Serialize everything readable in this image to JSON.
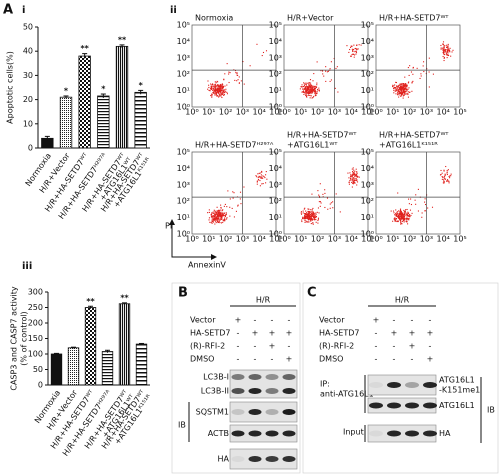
{
  "figure_label": "A",
  "chart_data": [
    {
      "type": "bar",
      "label": "i",
      "y_label": [
        "Apoptotic cells(%)"
      ],
      "categories": [
        [
          "Normoxia"
        ],
        [
          "H/R+Vector"
        ],
        [
          "H/R+HA-SETD7ᵂᵀ"
        ],
        [
          "H/R+HA-SETD7ᴴ²⁹⁷ᴬ"
        ],
        [
          "H/R+HA-SETD7ᵂᵀ",
          "+ATG16L1ᵂᵀ"
        ],
        [
          "H/R+HA-SETD7ᵂᵀ",
          "+ATG16L1ᴷ¹⁵¹ᴿ"
        ]
      ],
      "values": [
        4,
        21,
        38,
        21.5,
        42,
        23
      ],
      "errors": [
        0.8,
        0.5,
        1,
        0.8,
        0.6,
        0.8
      ],
      "significance": [
        null,
        "*",
        "**",
        "*",
        "**",
        "*"
      ],
      "ylim": [
        0,
        50
      ],
      "yticks": [
        0,
        10,
        20,
        30,
        40,
        50
      ]
    },
    {
      "type": "bar",
      "label": "iii",
      "y_label": [
        "CASP3 and CASP7 activity",
        "(% of control)"
      ],
      "categories": [
        [
          "Normoxia"
        ],
        [
          "H/R+Vector"
        ],
        [
          "H/R+HA-SETD7ᵂᵀ"
        ],
        [
          "H/R+HA-SETD7ᴴ²⁹⁷ᴬ"
        ],
        [
          "H/R+HA-SETD7ᵂᵀ",
          "+ATG16L1ᵂᵀ"
        ],
        [
          "H/R+HA-SETD7ᵂᵀ",
          "+ATG16L1ᴷ¹⁵¹ᴿ"
        ]
      ],
      "values": [
        100,
        120,
        250,
        108,
        262,
        132
      ],
      "errors": [
        2,
        2,
        4,
        4,
        3,
        2
      ],
      "significance": [
        null,
        null,
        "**",
        null,
        "**",
        null
      ],
      "ylim": [
        0,
        300
      ],
      "yticks": [
        0,
        50,
        100,
        150,
        200,
        250,
        300
      ]
    }
  ],
  "flow_panel": {
    "label": "ii",
    "y_axis_label": "PI",
    "x_axis_label": "AnnexinV",
    "axis_ticks": [
      "10⁰",
      "10¹",
      "10²",
      "10³",
      "10⁴",
      "10⁵"
    ],
    "plots": [
      {
        "title": [
          "Normoxia"
        ]
      },
      {
        "title": [
          "H/R+Vector"
        ]
      },
      {
        "title": [
          "H/R+HA-SETD7ᵂᵀ"
        ]
      },
      {
        "title": [
          "H/R+HA-SETD7ᴴ²⁹⁷ᴬ"
        ]
      },
      {
        "title": [
          "H/R+HA-SETD7ᵂᵀ",
          "+ATG16L1ᵂᵀ"
        ]
      },
      {
        "title": [
          "H/R+HA-SETD7ᵂᵀ",
          "+ATG16L1ᴷ¹⁵¹ᴿ"
        ]
      }
    ]
  },
  "blot_b": {
    "label": "B",
    "condition": "H/R",
    "treatments": [
      {
        "name": "Vector",
        "signs": [
          "+",
          "-",
          "-",
          "-"
        ]
      },
      {
        "name": "HA-SETD7",
        "signs": [
          "-",
          "+",
          "+",
          "+"
        ]
      },
      {
        "name": "(R)-RFI-2",
        "signs": [
          "-",
          "-",
          "+",
          "-"
        ]
      },
      {
        "name": "DMSO",
        "signs": [
          "-",
          "-",
          "-",
          "+"
        ]
      }
    ],
    "blots": [
      {
        "names": [
          "LC3B-I",
          "LC3B-II"
        ]
      },
      {
        "names": [
          "SQSTM1"
        ]
      },
      {
        "names": [
          "ACTB"
        ]
      },
      {
        "names": [
          "HA"
        ]
      }
    ],
    "ib": "IB"
  },
  "blot_c": {
    "label": "C",
    "condition": "H/R",
    "treatments": [
      {
        "name": "Vector",
        "signs": [
          "+",
          "-",
          "-",
          "-"
        ]
      },
      {
        "name": "HA-SETD7",
        "signs": [
          "-",
          "+",
          "+",
          "+"
        ]
      },
      {
        "name": "(R)-RFI-2",
        "signs": [
          "-",
          "-",
          "+",
          "-"
        ]
      },
      {
        "name": "DMSO",
        "signs": [
          "-",
          "-",
          "-",
          "+"
        ]
      }
    ],
    "ip": [
      "IP:",
      "anti-ATG16L1"
    ],
    "input": "Input",
    "blots": [
      {
        "names": [
          "ATG16L1",
          "-K151me1"
        ]
      },
      {
        "names": [
          "ATG16L1"
        ]
      },
      {
        "names": [
          "HA"
        ]
      }
    ],
    "ib": "IB"
  }
}
